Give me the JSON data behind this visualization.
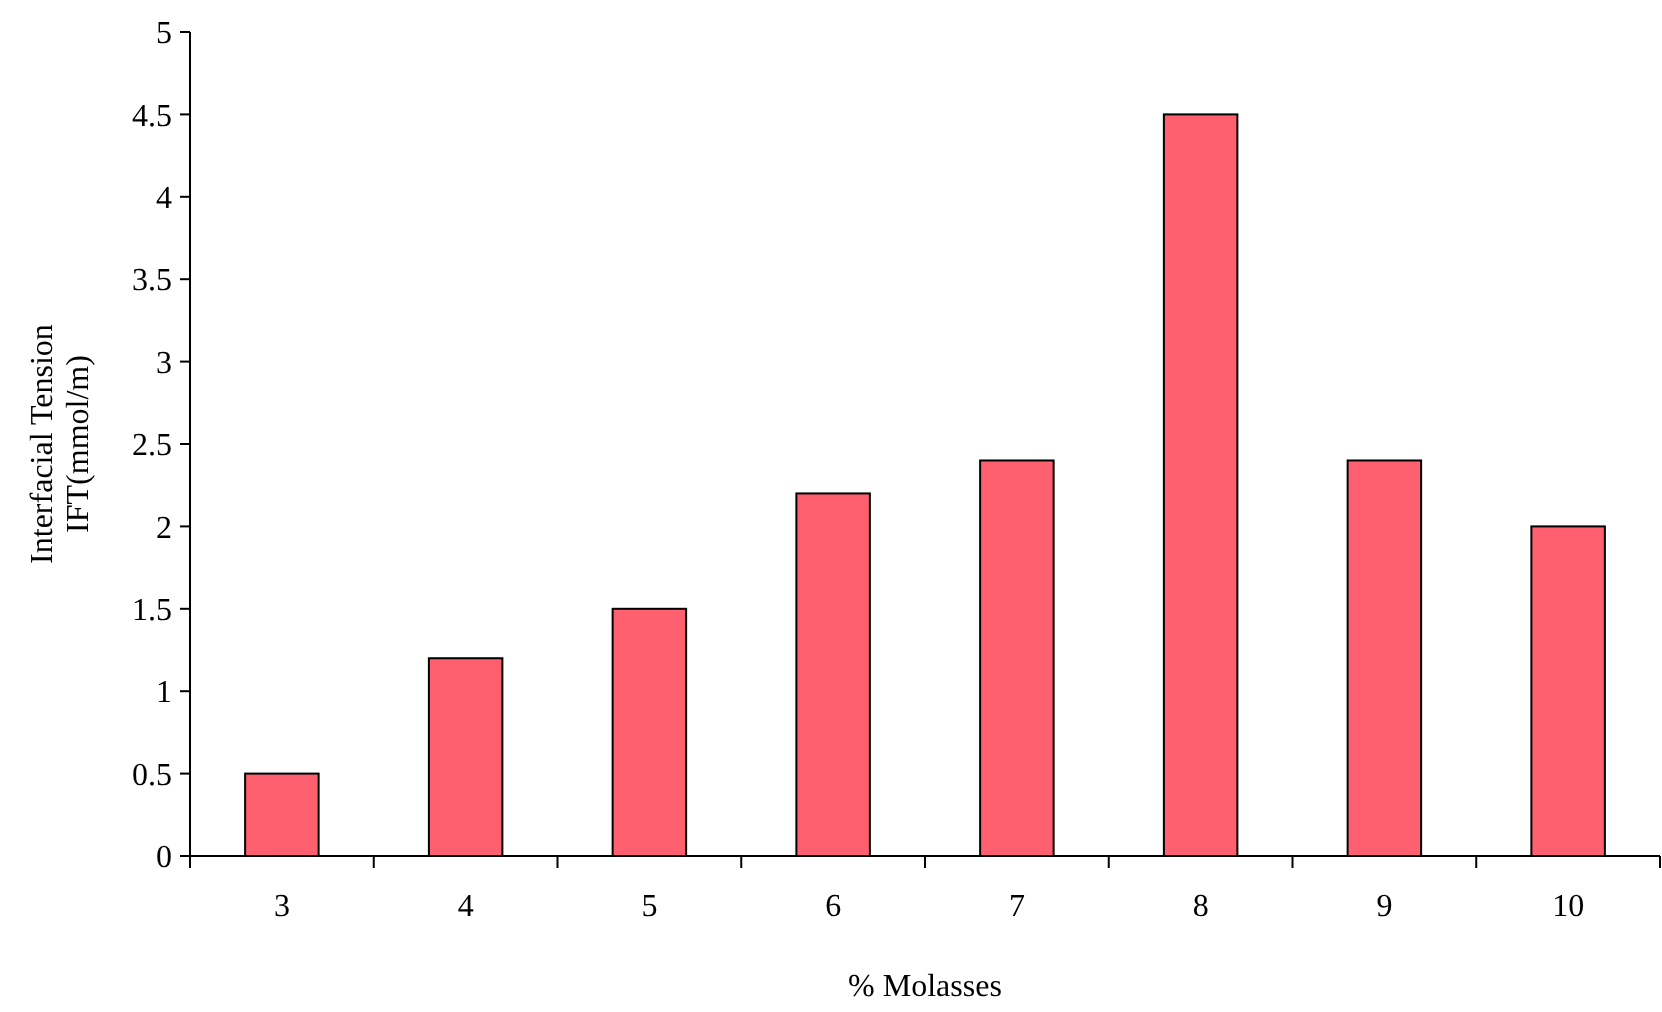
{
  "chart_data": {
    "type": "bar",
    "xlabel": "%  Molasses",
    "ylabel": "Interfacial Tension\nIFT(mmol/m)",
    "categories": [
      "3",
      "4",
      "5",
      "6",
      "7",
      "8",
      "9",
      "10"
    ],
    "values": [
      0.5,
      1.2,
      1.5,
      2.2,
      2.4,
      4.5,
      2.4,
      2.0
    ],
    "color": "#ff6070",
    "ylim": [
      0,
      5
    ],
    "yticks": [
      0,
      0.5,
      1,
      1.5,
      2,
      2.5,
      3,
      3.5,
      4,
      4.5,
      5
    ],
    "grid": false
  }
}
